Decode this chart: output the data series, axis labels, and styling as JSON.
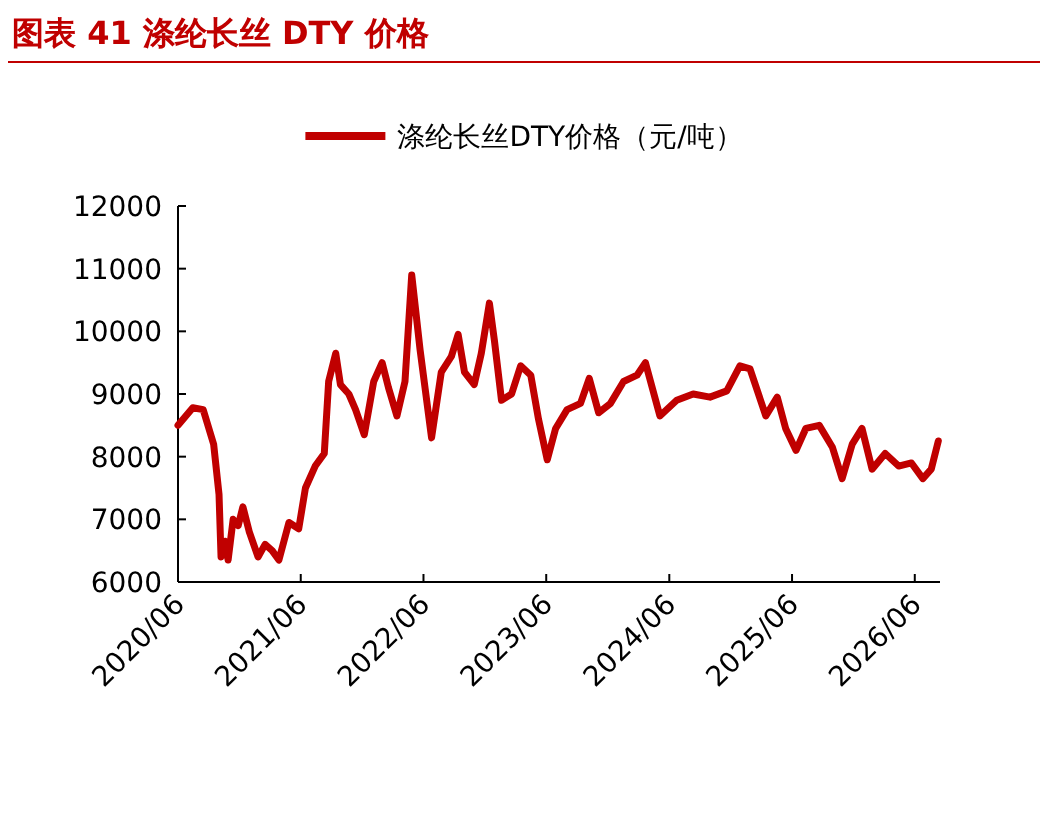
{
  "chart_data": {
    "type": "line",
    "title": "图表 41  涤纶长丝 DTY 价格",
    "x": [
      "2020-06-01",
      "2020-07-15",
      "2020-08-15",
      "2020-09-15",
      "2020-10-01",
      "2020-10-07",
      "2020-10-19",
      "2020-10-28",
      "2020-11-12",
      "2020-11-27",
      "2020-12-11",
      "2020-12-30",
      "2021-01-25",
      "2021-02-15",
      "2021-03-08",
      "2021-03-28",
      "2021-04-27",
      "2021-05-26",
      "2021-06-15",
      "2021-07-14",
      "2021-08-10",
      "2021-08-23",
      "2021-09-13",
      "2021-09-27",
      "2021-10-22",
      "2021-11-11",
      "2021-12-07",
      "2022-01-04",
      "2022-01-29",
      "2022-02-17",
      "2022-03-14",
      "2022-04-07",
      "2022-04-27",
      "2022-05-22",
      "2022-06-25",
      "2022-07-24",
      "2022-08-23",
      "2022-09-12",
      "2022-10-01",
      "2022-10-30",
      "2022-11-20",
      "2022-12-14",
      "2022-12-29",
      "2023-01-19",
      "2023-02-18",
      "2023-03-17",
      "2023-04-16",
      "2023-05-09",
      "2023-06-04",
      "2023-06-29",
      "2023-08-02",
      "2023-09-11",
      "2023-10-07",
      "2023-11-04",
      "2023-12-09",
      "2024-01-17",
      "2024-02-26",
      "2024-03-22",
      "2024-05-04",
      "2024-06-23",
      "2024-08-11",
      "2024-09-30",
      "2024-11-19",
      "2024-12-28",
      "2025-01-27",
      "2025-03-15",
      "2025-04-18",
      "2025-05-13",
      "2025-06-13",
      "2025-07-12",
      "2025-08-21",
      "2025-09-29",
      "2025-10-28",
      "2025-11-27",
      "2025-12-26",
      "2026-01-25",
      "2026-03-05",
      "2026-04-14",
      "2026-05-22",
      "2026-06-25",
      "2026-07-20",
      "2026-08-10"
    ],
    "series": [
      {
        "name": "涤纶长丝DTY价格（元/吨）",
        "color": "#c00000",
        "values": [
          8500,
          8780,
          8750,
          8200,
          7400,
          6400,
          6650,
          6350,
          7000,
          6900,
          7200,
          6800,
          6400,
          6600,
          6500,
          6350,
          6950,
          6850,
          7500,
          7850,
          8050,
          9200,
          9650,
          9150,
          9000,
          8750,
          8350,
          9200,
          9500,
          9100,
          8650,
          9200,
          10900,
          9700,
          8300,
          9350,
          9600,
          9950,
          9350,
          9150,
          9650,
          10450,
          9850,
          8900,
          9000,
          9450,
          9300,
          8600,
          7950,
          8450,
          8750,
          8850,
          9250,
          8700,
          8850,
          9200,
          9300,
          9500,
          8650,
          8900,
          9000,
          8950,
          9050,
          9450,
          9400,
          8650,
          8950,
          8450,
          8100,
          8450,
          8500,
          8150,
          7650,
          8200,
          8450,
          7800,
          8050,
          7850,
          7900,
          7650,
          7800,
          8250
        ]
      }
    ],
    "xlim": [
      "2020-06-01",
      "2026-08-15"
    ],
    "xticks": [
      {
        "value": "2020-06-01",
        "label": "2020/06"
      },
      {
        "value": "2021-06-01",
        "label": "2021/06"
      },
      {
        "value": "2022-06-01",
        "label": "2022/06"
      },
      {
        "value": "2023-06-01",
        "label": "2023/06"
      },
      {
        "value": "2024-06-01",
        "label": "2024/06"
      },
      {
        "value": "2025-06-01",
        "label": "2025/06"
      },
      {
        "value": "2026-06-01",
        "label": "2026/06"
      }
    ],
    "ylim": [
      6000,
      12000
    ],
    "yticks": [
      6000,
      7000,
      8000,
      9000,
      10000,
      11000,
      12000
    ],
    "legend": "top",
    "grid": false
  }
}
